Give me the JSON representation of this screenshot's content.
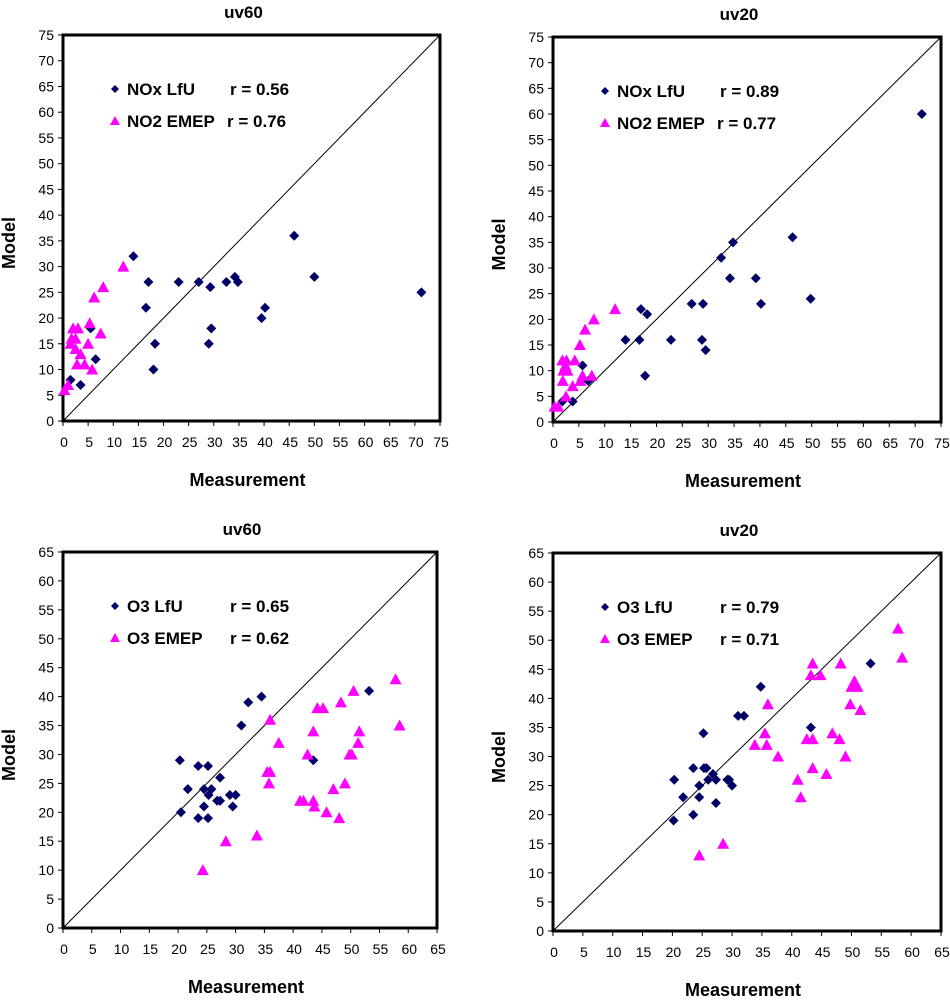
{
  "colors": {
    "lfu": "#000066",
    "emep": "#FF00FF",
    "axis": "#000000",
    "background": "#FFFFFF"
  },
  "chart_data": [
    {
      "id": "nox-uv60",
      "type": "scatter",
      "title": "uv60",
      "xlabel": "Measurement",
      "ylabel": "Model",
      "xlim": [
        0,
        75
      ],
      "ylim": [
        0,
        75
      ],
      "xticks": [
        "0",
        "5",
        "10",
        "15",
        "20",
        "25",
        "30",
        "35",
        "40",
        "45",
        "50",
        "55",
        "60",
        "65",
        "70",
        "75"
      ],
      "yticks": [
        "0",
        "5",
        "10",
        "15",
        "20",
        "25",
        "30",
        "35",
        "40",
        "45",
        "50",
        "55",
        "60",
        "65",
        "70",
        "75"
      ],
      "grid": false,
      "reference_line": "1:1",
      "legend": "top-left",
      "series": [
        {
          "name": "NOx LfU",
          "legend_label": "NOx LfU",
          "r_label": "r = 0.56",
          "marker": "diamond",
          "points": [
            [
              1.5,
              8
            ],
            [
              3.5,
              7
            ],
            [
              5.5,
              18
            ],
            [
              6.5,
              12
            ],
            [
              14,
              32
            ],
            [
              16.5,
              22
            ],
            [
              17,
              27
            ],
            [
              18,
              10
            ],
            [
              18.3,
              15
            ],
            [
              23,
              27
            ],
            [
              27,
              27
            ],
            [
              29,
              15
            ],
            [
              29.3,
              26
            ],
            [
              29.5,
              18
            ],
            [
              32.5,
              27
            ],
            [
              34.2,
              28
            ],
            [
              34.8,
              27
            ],
            [
              39.5,
              20
            ],
            [
              40.2,
              22
            ],
            [
              46,
              36
            ],
            [
              50,
              28
            ],
            [
              71.3,
              25
            ]
          ]
        },
        {
          "name": "NO2 EMEP",
          "legend_label": "NO2 EMEP",
          "r_label": "r = 0.76",
          "marker": "triangle",
          "points": [
            [
              0.3,
              6
            ],
            [
              1,
              7
            ],
            [
              1.5,
              15
            ],
            [
              1.7,
              16
            ],
            [
              2,
              18
            ],
            [
              2.5,
              14
            ],
            [
              2.5,
              16
            ],
            [
              2.8,
              11
            ],
            [
              3,
              18
            ],
            [
              3.5,
              13
            ],
            [
              4.3,
              11
            ],
            [
              5,
              15
            ],
            [
              5.3,
              19
            ],
            [
              5.8,
              10
            ],
            [
              6.2,
              24
            ],
            [
              7.5,
              17
            ],
            [
              8,
              26
            ],
            [
              12,
              30
            ]
          ]
        }
      ]
    },
    {
      "id": "nox-uv20",
      "type": "scatter",
      "title": "uv20",
      "xlabel": "Measurement",
      "ylabel": "Model",
      "xlim": [
        0,
        75
      ],
      "ylim": [
        0,
        75
      ],
      "xticks": [
        "0",
        "5",
        "10",
        "15",
        "20",
        "25",
        "30",
        "35",
        "40",
        "45",
        "50",
        "55",
        "60",
        "65",
        "70",
        "75"
      ],
      "yticks": [
        "0",
        "5",
        "10",
        "15",
        "20",
        "25",
        "30",
        "35",
        "40",
        "45",
        "50",
        "55",
        "60",
        "65",
        "70",
        "75"
      ],
      "grid": false,
      "reference_line": "1:1",
      "legend": "top-left",
      "series": [
        {
          "name": "NOx LfU",
          "legend_label": "NOx LfU",
          "r_label": "r = 0.89",
          "marker": "diamond",
          "points": [
            [
              1.8,
              4
            ],
            [
              3.8,
              4
            ],
            [
              5.7,
              11
            ],
            [
              6.8,
              8
            ],
            [
              14,
              16
            ],
            [
              16.7,
              16
            ],
            [
              17,
              22
            ],
            [
              17.8,
              9
            ],
            [
              18.2,
              21
            ],
            [
              22.8,
              16
            ],
            [
              26.8,
              23
            ],
            [
              28.8,
              16
            ],
            [
              29,
              23
            ],
            [
              29.5,
              14
            ],
            [
              32.5,
              32
            ],
            [
              34.2,
              28
            ],
            [
              34.8,
              35
            ],
            [
              39.2,
              28
            ],
            [
              40.2,
              23
            ],
            [
              46.3,
              36
            ],
            [
              49.8,
              24
            ],
            [
              71.3,
              60
            ]
          ]
        },
        {
          "name": "NO2 EMEP",
          "legend_label": "NO2 EMEP",
          "r_label": "r = 0.77",
          "marker": "triangle",
          "points": [
            [
              0.3,
              3
            ],
            [
              1,
              3
            ],
            [
              1.8,
              12
            ],
            [
              1.9,
              8
            ],
            [
              2,
              10
            ],
            [
              2.4,
              11
            ],
            [
              2.5,
              5
            ],
            [
              2.6,
              12
            ],
            [
              2.8,
              10
            ],
            [
              3.8,
              7
            ],
            [
              4.2,
              12
            ],
            [
              5.2,
              15
            ],
            [
              5.3,
              8
            ],
            [
              5.7,
              9
            ],
            [
              6.2,
              18
            ],
            [
              7.5,
              9
            ],
            [
              7.9,
              20
            ],
            [
              12,
              22
            ]
          ]
        }
      ]
    },
    {
      "id": "o3-uv60",
      "type": "scatter",
      "title": "uv60",
      "xlabel": "Measurement",
      "ylabel": "Model",
      "xlim": [
        0,
        65
      ],
      "ylim": [
        0,
        65
      ],
      "xticks": [
        "0",
        "5",
        "10",
        "15",
        "20",
        "25",
        "30",
        "35",
        "40",
        "45",
        "50",
        "55",
        "60",
        "65"
      ],
      "yticks": [
        "0",
        "5",
        "10",
        "15",
        "20",
        "25",
        "30",
        "35",
        "40",
        "45",
        "50",
        "55",
        "60",
        "65"
      ],
      "grid": false,
      "reference_line": "1:1",
      "legend": "top-left",
      "series": [
        {
          "name": "O3 LfU",
          "legend_label": "O3 LfU",
          "r_label": "r = 0.65",
          "marker": "diamond",
          "points": [
            [
              20.3,
              29
            ],
            [
              20.5,
              20
            ],
            [
              21.7,
              24
            ],
            [
              23.5,
              28
            ],
            [
              23.5,
              19
            ],
            [
              24.5,
              24
            ],
            [
              24.5,
              21
            ],
            [
              25.2,
              28
            ],
            [
              25.2,
              19
            ],
            [
              25.3,
              23
            ],
            [
              25.8,
              24
            ],
            [
              26.8,
              22
            ],
            [
              27.3,
              22
            ],
            [
              27.3,
              26
            ],
            [
              29,
              23
            ],
            [
              29.5,
              21
            ],
            [
              30,
              23
            ],
            [
              31,
              35
            ],
            [
              32.2,
              39
            ],
            [
              34.5,
              40
            ],
            [
              43.5,
              29
            ],
            [
              53.2,
              41
            ]
          ]
        },
        {
          "name": "O3 EMEP",
          "legend_label": "O3 EMEP",
          "r_label": "r = 0.62",
          "marker": "triangle",
          "points": [
            [
              24.3,
              10
            ],
            [
              28.3,
              15
            ],
            [
              33.7,
              16
            ],
            [
              35.5,
              27
            ],
            [
              35.8,
              25
            ],
            [
              36,
              27
            ],
            [
              36,
              36
            ],
            [
              37.5,
              32
            ],
            [
              41.2,
              22
            ],
            [
              41.8,
              22
            ],
            [
              42.5,
              30
            ],
            [
              43.5,
              34
            ],
            [
              43.5,
              22
            ],
            [
              43.7,
              21
            ],
            [
              44.2,
              38
            ],
            [
              45.2,
              38
            ],
            [
              45.8,
              20
            ],
            [
              47,
              24
            ],
            [
              48,
              19
            ],
            [
              48.3,
              39
            ],
            [
              49,
              25
            ],
            [
              49.8,
              30
            ],
            [
              50.2,
              30
            ],
            [
              50.5,
              41
            ],
            [
              51.3,
              32
            ],
            [
              51.5,
              34
            ],
            [
              57.8,
              43
            ],
            [
              58.5,
              35
            ]
          ]
        }
      ]
    },
    {
      "id": "o3-uv20",
      "type": "scatter",
      "title": "uv20",
      "xlabel": "Measurement",
      "ylabel": "Model",
      "xlim": [
        0,
        65
      ],
      "ylim": [
        0,
        65
      ],
      "xticks": [
        "0",
        "5",
        "10",
        "15",
        "20",
        "25",
        "30",
        "35",
        "40",
        "45",
        "50",
        "55",
        "60",
        "65"
      ],
      "yticks": [
        "0",
        "5",
        "10",
        "15",
        "20",
        "25",
        "30",
        "35",
        "40",
        "45",
        "50",
        "55",
        "60",
        "65"
      ],
      "grid": false,
      "reference_line": "1:1",
      "legend": "top-left",
      "series": [
        {
          "name": "O3 LfU",
          "legend_label": "O3 LfU",
          "r_label": "r = 0.79",
          "marker": "diamond",
          "points": [
            [
              20.2,
              19
            ],
            [
              20.3,
              26
            ],
            [
              21.8,
              23
            ],
            [
              23.5,
              20
            ],
            [
              23.5,
              28
            ],
            [
              24.5,
              25
            ],
            [
              24.5,
              23
            ],
            [
              25.2,
              34
            ],
            [
              25.3,
              28
            ],
            [
              25.7,
              28
            ],
            [
              26,
              26
            ],
            [
              26.8,
              27
            ],
            [
              27.3,
              22
            ],
            [
              27.3,
              26
            ],
            [
              29.2,
              26
            ],
            [
              29.5,
              26
            ],
            [
              30,
              25
            ],
            [
              31,
              37
            ],
            [
              32,
              37
            ],
            [
              34.8,
              42
            ],
            [
              43.2,
              35
            ],
            [
              53.2,
              46
            ]
          ]
        },
        {
          "name": "O3 EMEP",
          "legend_label": "O3 EMEP",
          "r_label": "r = 0.71",
          "marker": "triangle",
          "points": [
            [
              24.5,
              13
            ],
            [
              28.5,
              15
            ],
            [
              33.8,
              32
            ],
            [
              35.5,
              34
            ],
            [
              35.8,
              32
            ],
            [
              36,
              39
            ],
            [
              37.7,
              30
            ],
            [
              41,
              26
            ],
            [
              41.5,
              23
            ],
            [
              42.5,
              33
            ],
            [
              43.2,
              44
            ],
            [
              43.5,
              33
            ],
            [
              43.5,
              28
            ],
            [
              43.5,
              46
            ],
            [
              44.8,
              44
            ],
            [
              45.8,
              27
            ],
            [
              46.8,
              34
            ],
            [
              48,
              33
            ],
            [
              48.2,
              46
            ],
            [
              49,
              30
            ],
            [
              49.8,
              39
            ],
            [
              50,
              42
            ],
            [
              50.5,
              43
            ],
            [
              51,
              42
            ],
            [
              51.5,
              38
            ],
            [
              57.8,
              52
            ],
            [
              58.5,
              47
            ]
          ]
        }
      ]
    }
  ]
}
